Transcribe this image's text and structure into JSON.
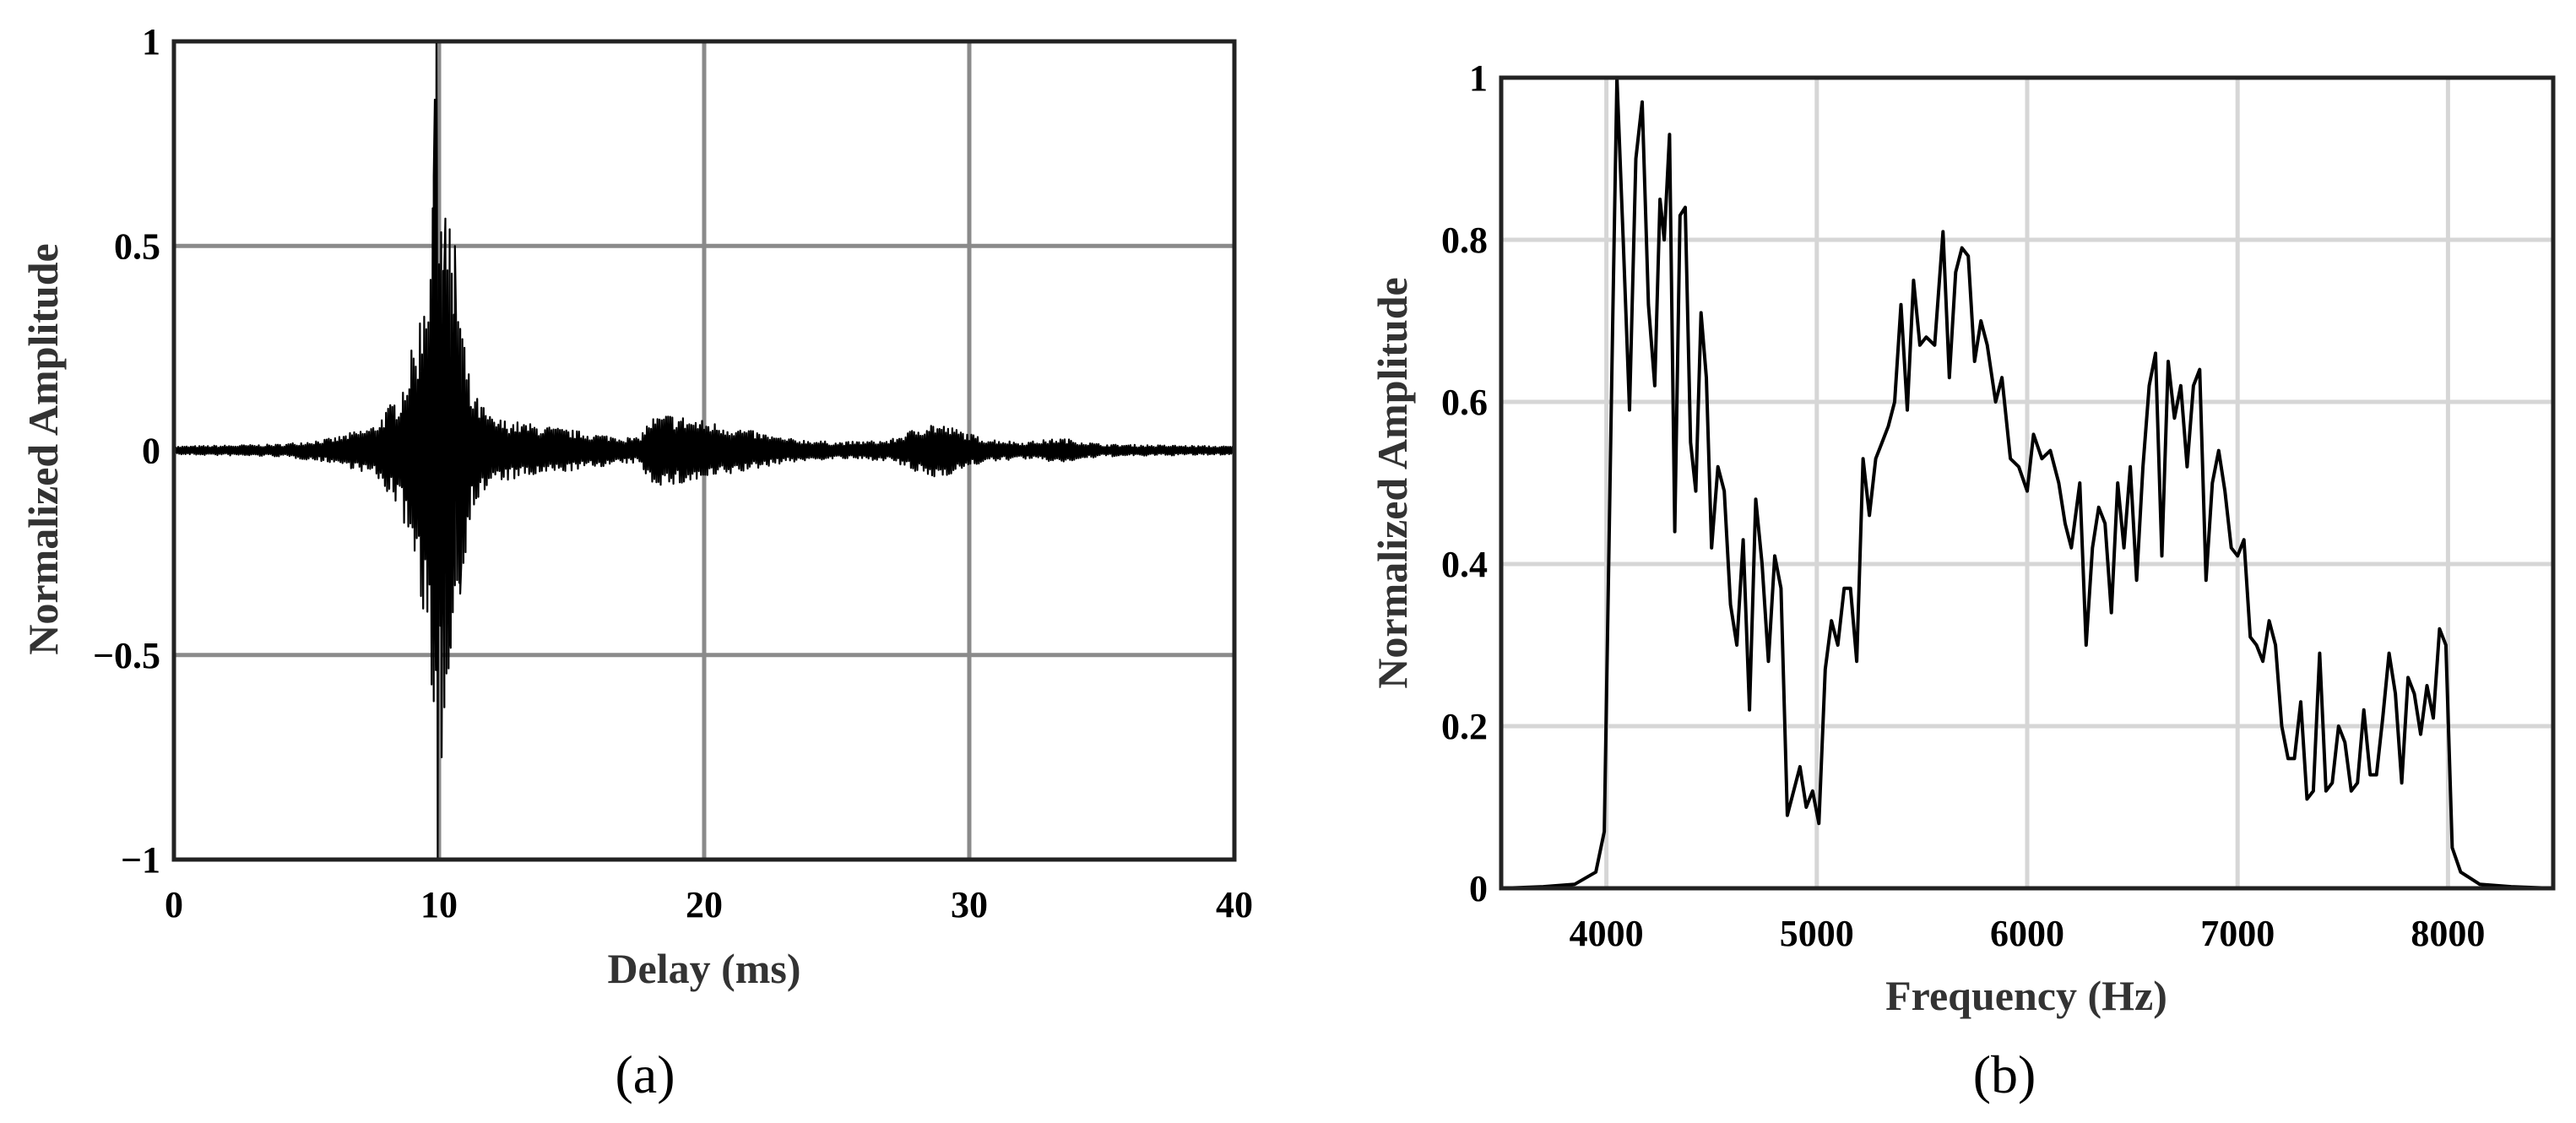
{
  "chart_data": [
    {
      "type": "line",
      "panel_label": "(a)",
      "xlabel": "Delay (ms)",
      "ylabel": "Normalized Amplitude",
      "xlim": [
        0,
        40
      ],
      "ylim": [
        -1,
        1
      ],
      "xticks": [
        0,
        10,
        20,
        30,
        40
      ],
      "yticks": [
        -1,
        -0.5,
        0,
        0.5,
        1
      ],
      "ytick_labels": [
        "−1",
        "−0.5",
        "0",
        "0.5",
        "1"
      ],
      "grid": true,
      "series": [
        {
          "color": "#000000",
          "envelope": [
            [
              0,
              0.01
            ],
            [
              4,
              0.015
            ],
            [
              6,
              0.03
            ],
            [
              7.5,
              0.06
            ],
            [
              8.5,
              0.14
            ],
            [
              9.2,
              0.3
            ],
            [
              9.6,
              0.5
            ],
            [
              9.9,
              0.95
            ],
            [
              10.1,
              0.7
            ],
            [
              10.6,
              0.45
            ],
            [
              11.2,
              0.15
            ],
            [
              12,
              0.08
            ],
            [
              14,
              0.06
            ],
            [
              16,
              0.04
            ],
            [
              17.5,
              0.03
            ],
            [
              18,
              0.08
            ],
            [
              18.7,
              0.09
            ],
            [
              19.5,
              0.08
            ],
            [
              21,
              0.06
            ],
            [
              23,
              0.03
            ],
            [
              25,
              0.02
            ],
            [
              27,
              0.025
            ],
            [
              28.5,
              0.07
            ],
            [
              29.2,
              0.06
            ],
            [
              30.5,
              0.03
            ],
            [
              32,
              0.02
            ],
            [
              33.5,
              0.03
            ],
            [
              35,
              0.015
            ],
            [
              40,
              0.01
            ]
          ],
          "peaks": [
            [
              9.6,
              0.3
            ],
            [
              9.7,
              -0.25
            ],
            [
              9.8,
              0.67
            ],
            [
              9.85,
              -0.3
            ],
            [
              9.9,
              1.0
            ],
            [
              9.95,
              -1.0
            ],
            [
              10.1,
              -0.75
            ],
            [
              10.2,
              0.45
            ],
            [
              10.4,
              -0.45
            ],
            [
              10.6,
              0.5
            ],
            [
              10.8,
              -0.35
            ]
          ]
        }
      ]
    },
    {
      "type": "line",
      "panel_label": "(b)",
      "xlabel": "Frequency (Hz)",
      "ylabel": "Normalized Amplitude",
      "xlim": [
        3500,
        8500
      ],
      "ylim": [
        0,
        1
      ],
      "xticks": [
        4000,
        5000,
        6000,
        7000,
        8000
      ],
      "yticks": [
        0,
        0.2,
        0.4,
        0.6,
        0.8,
        1
      ],
      "ytick_labels": [
        "0",
        "0.2",
        "0.4",
        "0.6",
        "0.8",
        "1"
      ],
      "grid": true,
      "series": [
        {
          "color": "#000000",
          "points": [
            [
              3500,
              0
            ],
            [
              3700,
              0.002
            ],
            [
              3850,
              0.005
            ],
            [
              3950,
              0.02
            ],
            [
              3990,
              0.07
            ],
            [
              4030,
              0.7
            ],
            [
              4050,
              1.0
            ],
            [
              4080,
              0.8
            ],
            [
              4110,
              0.59
            ],
            [
              4140,
              0.9
            ],
            [
              4170,
              0.97
            ],
            [
              4200,
              0.72
            ],
            [
              4230,
              0.62
            ],
            [
              4255,
              0.85
            ],
            [
              4275,
              0.8
            ],
            [
              4300,
              0.93
            ],
            [
              4325,
              0.44
            ],
            [
              4350,
              0.83
            ],
            [
              4375,
              0.84
            ],
            [
              4400,
              0.55
            ],
            [
              4425,
              0.49
            ],
            [
              4450,
              0.71
            ],
            [
              4475,
              0.63
            ],
            [
              4500,
              0.42
            ],
            [
              4530,
              0.52
            ],
            [
              4560,
              0.49
            ],
            [
              4590,
              0.35
            ],
            [
              4620,
              0.3
            ],
            [
              4650,
              0.43
            ],
            [
              4680,
              0.22
            ],
            [
              4710,
              0.48
            ],
            [
              4740,
              0.4
            ],
            [
              4770,
              0.28
            ],
            [
              4800,
              0.41
            ],
            [
              4830,
              0.37
            ],
            [
              4860,
              0.09
            ],
            [
              4890,
              0.12
            ],
            [
              4920,
              0.15
            ],
            [
              4950,
              0.1
            ],
            [
              4980,
              0.12
            ],
            [
              5010,
              0.08
            ],
            [
              5040,
              0.27
            ],
            [
              5070,
              0.33
            ],
            [
              5100,
              0.3
            ],
            [
              5130,
              0.37
            ],
            [
              5160,
              0.37
            ],
            [
              5190,
              0.28
            ],
            [
              5220,
              0.53
            ],
            [
              5250,
              0.46
            ],
            [
              5280,
              0.53
            ],
            [
              5310,
              0.55
            ],
            [
              5340,
              0.57
            ],
            [
              5370,
              0.6
            ],
            [
              5400,
              0.72
            ],
            [
              5430,
              0.59
            ],
            [
              5460,
              0.75
            ],
            [
              5490,
              0.67
            ],
            [
              5520,
              0.68
            ],
            [
              5560,
              0.67
            ],
            [
              5600,
              0.81
            ],
            [
              5630,
              0.63
            ],
            [
              5660,
              0.76
            ],
            [
              5690,
              0.79
            ],
            [
              5720,
              0.78
            ],
            [
              5750,
              0.65
            ],
            [
              5780,
              0.7
            ],
            [
              5810,
              0.67
            ],
            [
              5850,
              0.6
            ],
            [
              5880,
              0.63
            ],
            [
              5920,
              0.53
            ],
            [
              5960,
              0.52
            ],
            [
              6000,
              0.49
            ],
            [
              6030,
              0.56
            ],
            [
              6070,
              0.53
            ],
            [
              6110,
              0.54
            ],
            [
              6150,
              0.5
            ],
            [
              6180,
              0.45
            ],
            [
              6210,
              0.42
            ],
            [
              6250,
              0.5
            ],
            [
              6280,
              0.3
            ],
            [
              6310,
              0.42
            ],
            [
              6340,
              0.47
            ],
            [
              6370,
              0.45
            ],
            [
              6400,
              0.34
            ],
            [
              6430,
              0.5
            ],
            [
              6460,
              0.42
            ],
            [
              6490,
              0.52
            ],
            [
              6520,
              0.38
            ],
            [
              6550,
              0.52
            ],
            [
              6580,
              0.62
            ],
            [
              6610,
              0.66
            ],
            [
              6640,
              0.41
            ],
            [
              6670,
              0.65
            ],
            [
              6700,
              0.58
            ],
            [
              6730,
              0.62
            ],
            [
              6760,
              0.52
            ],
            [
              6790,
              0.62
            ],
            [
              6820,
              0.64
            ],
            [
              6850,
              0.38
            ],
            [
              6880,
              0.5
            ],
            [
              6910,
              0.54
            ],
            [
              6940,
              0.49
            ],
            [
              6970,
              0.42
            ],
            [
              7000,
              0.41
            ],
            [
              7030,
              0.43
            ],
            [
              7060,
              0.31
            ],
            [
              7090,
              0.3
            ],
            [
              7120,
              0.28
            ],
            [
              7150,
              0.33
            ],
            [
              7180,
              0.3
            ],
            [
              7210,
              0.2
            ],
            [
              7240,
              0.16
            ],
            [
              7270,
              0.16
            ],
            [
              7300,
              0.23
            ],
            [
              7330,
              0.11
            ],
            [
              7360,
              0.12
            ],
            [
              7390,
              0.29
            ],
            [
              7420,
              0.12
            ],
            [
              7450,
              0.13
            ],
            [
              7480,
              0.2
            ],
            [
              7510,
              0.18
            ],
            [
              7540,
              0.12
            ],
            [
              7570,
              0.13
            ],
            [
              7600,
              0.22
            ],
            [
              7630,
              0.14
            ],
            [
              7660,
              0.14
            ],
            [
              7690,
              0.21
            ],
            [
              7720,
              0.29
            ],
            [
              7750,
              0.24
            ],
            [
              7780,
              0.13
            ],
            [
              7810,
              0.26
            ],
            [
              7840,
              0.24
            ],
            [
              7870,
              0.19
            ],
            [
              7900,
              0.25
            ],
            [
              7930,
              0.21
            ],
            [
              7960,
              0.32
            ],
            [
              7990,
              0.3
            ],
            [
              8020,
              0.05
            ],
            [
              8060,
              0.02
            ],
            [
              8150,
              0.005
            ],
            [
              8300,
              0.002
            ],
            [
              8500,
              0
            ]
          ]
        }
      ]
    }
  ]
}
